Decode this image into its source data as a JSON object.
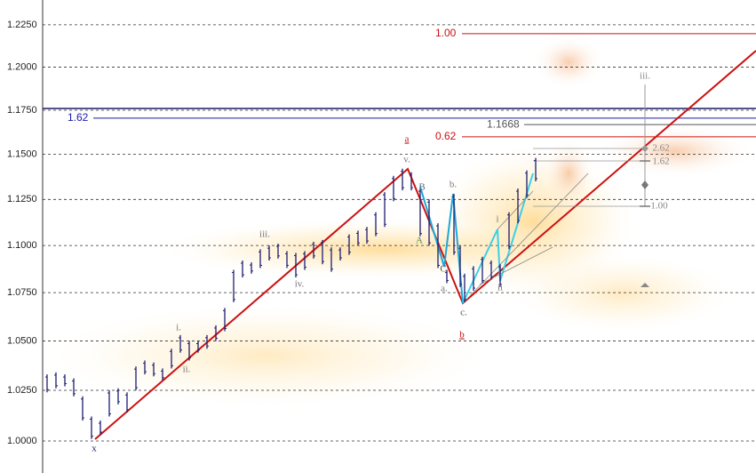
{
  "chart_data": {
    "type": "ohlc",
    "log_scale": true,
    "grid": true,
    "ylim": [
      0.9845,
      1.2399
    ],
    "yticks": [
      {
        "value": 1.0,
        "label": "1.0000"
      },
      {
        "value": 1.025,
        "label": "1.0250"
      },
      {
        "value": 1.05,
        "label": "1.0500"
      },
      {
        "value": 1.075,
        "label": "1.0750"
      },
      {
        "value": 1.1,
        "label": "1.1000"
      },
      {
        "value": 1.125,
        "label": "1.1250"
      },
      {
        "value": 1.15,
        "label": "1.1500"
      },
      {
        "value": 1.175,
        "label": "1.1750"
      },
      {
        "value": 1.2,
        "label": "1.2000"
      },
      {
        "value": 1.225,
        "label": "1.2250"
      }
    ],
    "color": "#1c1c6e",
    "high": [
      1.033,
      1.034,
      1.033,
      1.031,
      1.022,
      1.012,
      1.01,
      1.025,
      1.026,
      1.024,
      1.037,
      1.04,
      1.039,
      1.036,
      1.046,
      1.053,
      1.05,
      1.05,
      1.053,
      1.058,
      1.067,
      1.087,
      1.092,
      1.091,
      1.098,
      1.1,
      1.101,
      1.097,
      1.096,
      1.097,
      1.102,
      1.103,
      1.099,
      1.099,
      1.106,
      1.108,
      1.11,
      1.118,
      1.129,
      1.138,
      1.142,
      1.14,
      1.131,
      1.125,
      1.112,
      1.087,
      1.128,
      1.1,
      1.085,
      1.089,
      1.094,
      1.092,
      1.09,
      1.118,
      1.131,
      1.141,
      1.148
    ],
    "low": [
      1.024,
      1.026,
      1.027,
      1.022,
      1.01,
      1.001,
      1.003,
      1.012,
      1.018,
      1.014,
      1.025,
      1.033,
      1.032,
      1.03,
      1.036,
      1.044,
      1.04,
      1.044,
      1.046,
      1.05,
      1.055,
      1.07,
      1.083,
      1.085,
      1.088,
      1.092,
      1.093,
      1.088,
      1.083,
      1.087,
      1.093,
      1.09,
      1.086,
      1.092,
      1.095,
      1.1,
      1.101,
      1.105,
      1.11,
      1.124,
      1.13,
      1.13,
      1.105,
      1.1,
      1.088,
      1.08,
      1.095,
      1.078,
      1.07,
      1.076,
      1.08,
      1.082,
      1.078,
      1.098,
      1.112,
      1.126,
      1.135
    ],
    "levels": [
      {
        "label": "1.00",
        "value": 1.2197,
        "color": "#cc1111"
      },
      {
        "label": "0.62",
        "value": 1.1599,
        "color": "#cc1111"
      },
      {
        "label": "1.62",
        "value": 1.1705,
        "color": "#1a1aa8"
      },
      {
        "label": "1.1668",
        "value": 1.1668,
        "color": "#555555"
      }
    ],
    "annotations": [
      {
        "text": "a",
        "color": "#cc1111"
      },
      {
        "text": "b",
        "color": "#cc1111"
      },
      {
        "text": "x",
        "color": "#1c1c6e"
      },
      {
        "text": "i.",
        "color": "#777777"
      },
      {
        "text": "ii.",
        "color": "#777777"
      },
      {
        "text": "iii.",
        "color": "#777777"
      },
      {
        "text": "iv.",
        "color": "#777777"
      },
      {
        "text": "v.",
        "color": "#777777"
      },
      {
        "text": "B",
        "color": "#4a6e8a"
      },
      {
        "text": "A",
        "color": "#5a8a5a"
      },
      {
        "text": "C",
        "color": "#555555"
      },
      {
        "text": "b.",
        "color": "#777777"
      },
      {
        "text": "a.",
        "color": "#777777"
      },
      {
        "text": "c.",
        "color": "#555555"
      },
      {
        "text": "i",
        "color": "#777777"
      },
      {
        "text": "ii",
        "color": "#777777"
      },
      {
        "text": "iii.",
        "color": "#888888"
      },
      {
        "text": "2.62",
        "color": "#888888"
      },
      {
        "text": "1.62",
        "color": "#888888"
      },
      {
        "text": "1.00",
        "color": "#888888"
      }
    ]
  }
}
